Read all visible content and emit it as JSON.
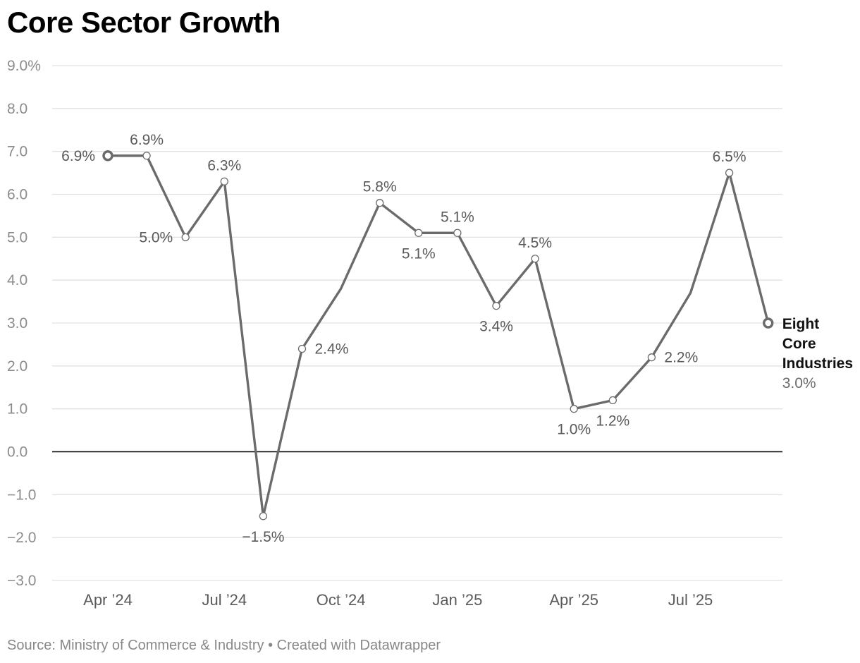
{
  "title": "Core Sector Growth",
  "source": "Source: Ministry of Commerce & Industry • Created with Datawrapper",
  "colors": {
    "line": "#6b6b6b",
    "grid": "#e2e2e2",
    "zero_line": "#000000"
  },
  "chart_data": {
    "type": "line",
    "title": "Core Sector Growth",
    "xlabel": "",
    "ylabel": "",
    "ylim": [
      -3.0,
      9.0
    ],
    "yticks": [
      "9.0%",
      "8.0",
      "7.0",
      "6.0",
      "5.0",
      "4.0",
      "3.0",
      "2.0",
      "1.0",
      "0.0",
      "−1.0",
      "−2.0",
      "−3.0"
    ],
    "ytick_values": [
      9,
      8,
      7,
      6,
      5,
      4,
      3,
      2,
      1,
      0,
      -1,
      -2,
      -3
    ],
    "xticks": [
      {
        "label": "Apr ’24",
        "index": 0
      },
      {
        "label": "Jul ’24",
        "index": 3
      },
      {
        "label": "Oct ’24",
        "index": 6
      },
      {
        "label": "Jan ’25",
        "index": 9
      },
      {
        "label": "Apr ’25",
        "index": 12
      },
      {
        "label": "Jul ’25",
        "index": 15
      }
    ],
    "series": [
      {
        "name": "Eight Core Industries",
        "name_lines": [
          "Eight",
          "Core",
          "Industries"
        ],
        "last_value_label": "3.0%",
        "x": [
          "Apr 2024",
          "May 2024",
          "Jun 2024",
          "Jul 2024",
          "Aug 2024",
          "Sep 2024",
          "Oct 2024",
          "Nov 2024",
          "Dec 2024",
          "Jan 2025",
          "Feb 2025",
          "Mar 2025",
          "Apr 2025",
          "May 2025",
          "Jun 2025",
          "Jul 2025",
          "Aug 2025",
          "Sep 2025"
        ],
        "values": [
          6.9,
          6.9,
          5.0,
          6.3,
          -1.5,
          2.4,
          3.8,
          5.8,
          5.1,
          5.1,
          3.4,
          4.5,
          1.0,
          1.2,
          2.2,
          3.7,
          6.5,
          3.0
        ]
      }
    ],
    "annotations": [
      {
        "index": 0,
        "text": "6.9%",
        "pos": "left"
      },
      {
        "index": 1,
        "text": "6.9%",
        "pos": "above"
      },
      {
        "index": 2,
        "text": "5.0%",
        "pos": "left"
      },
      {
        "index": 3,
        "text": "6.3%",
        "pos": "above"
      },
      {
        "index": 4,
        "text": "−1.5%",
        "pos": "below"
      },
      {
        "index": 5,
        "text": "2.4%",
        "pos": "right"
      },
      {
        "index": 7,
        "text": "5.8%",
        "pos": "above"
      },
      {
        "index": 8,
        "text": "5.1%",
        "pos": "below"
      },
      {
        "index": 9,
        "text": "5.1%",
        "pos": "above"
      },
      {
        "index": 10,
        "text": "3.4%",
        "pos": "below"
      },
      {
        "index": 11,
        "text": "4.5%",
        "pos": "above"
      },
      {
        "index": 12,
        "text": "1.0%",
        "pos": "below"
      },
      {
        "index": 13,
        "text": "1.2%",
        "pos": "below"
      },
      {
        "index": 14,
        "text": "2.2%",
        "pos": "right"
      },
      {
        "index": 16,
        "text": "6.5%",
        "pos": "above"
      }
    ],
    "hollow_marker_indices": [
      0,
      1,
      2,
      3,
      4,
      5,
      7,
      8,
      9,
      10,
      11,
      12,
      13,
      14,
      16,
      17
    ],
    "highlight_marker_indices": [
      0,
      17
    ],
    "grid": true,
    "legend": "none"
  }
}
